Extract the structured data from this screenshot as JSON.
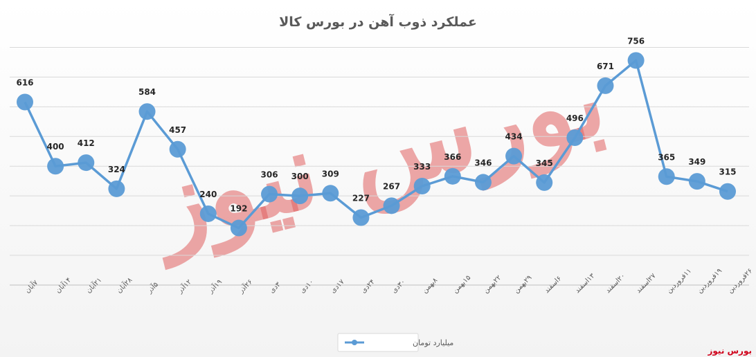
{
  "chart_data": {
    "type": "line",
    "title": "عملکرد ذوب آهن در بورس کالا",
    "categories": [
      "۷آبان",
      "۱۴آبان",
      "۲۱آبان",
      "۲۸آبان",
      "۵آذر",
      "۱۲آذر",
      "۱۹آذر",
      "۲۶آذر",
      "۳دی",
      "۱۰دی",
      "۱۷دی",
      "۲۴دی",
      "۳۰دی",
      "۸بهمن",
      "۱۵بهمن",
      "۲۲بهمن",
      "۲۹بهمن",
      "۶اسفند",
      "۱۳اسفند",
      "۲۰اسفند",
      "۲۷اسفند",
      "۱۱فروردین",
      "۱۹فروردین",
      "۲۶فروردین"
    ],
    "series": [
      {
        "name": "میلیارد تومان",
        "color": "#5b9bd5",
        "values": [
          616,
          400,
          412,
          324,
          584,
          457,
          240,
          192,
          306,
          300,
          309,
          227,
          267,
          333,
          366,
          346,
          434,
          345,
          496,
          671,
          756,
          365,
          349,
          315
        ]
      }
    ],
    "ylim": [
      0,
      850
    ],
    "grid": true,
    "legend_position": "bottom-center"
  },
  "watermark": {
    "text": "بورس نیوز",
    "color": "#e06060"
  },
  "brand": {
    "text": "بورس نیوز",
    "color": "#d0021b"
  }
}
